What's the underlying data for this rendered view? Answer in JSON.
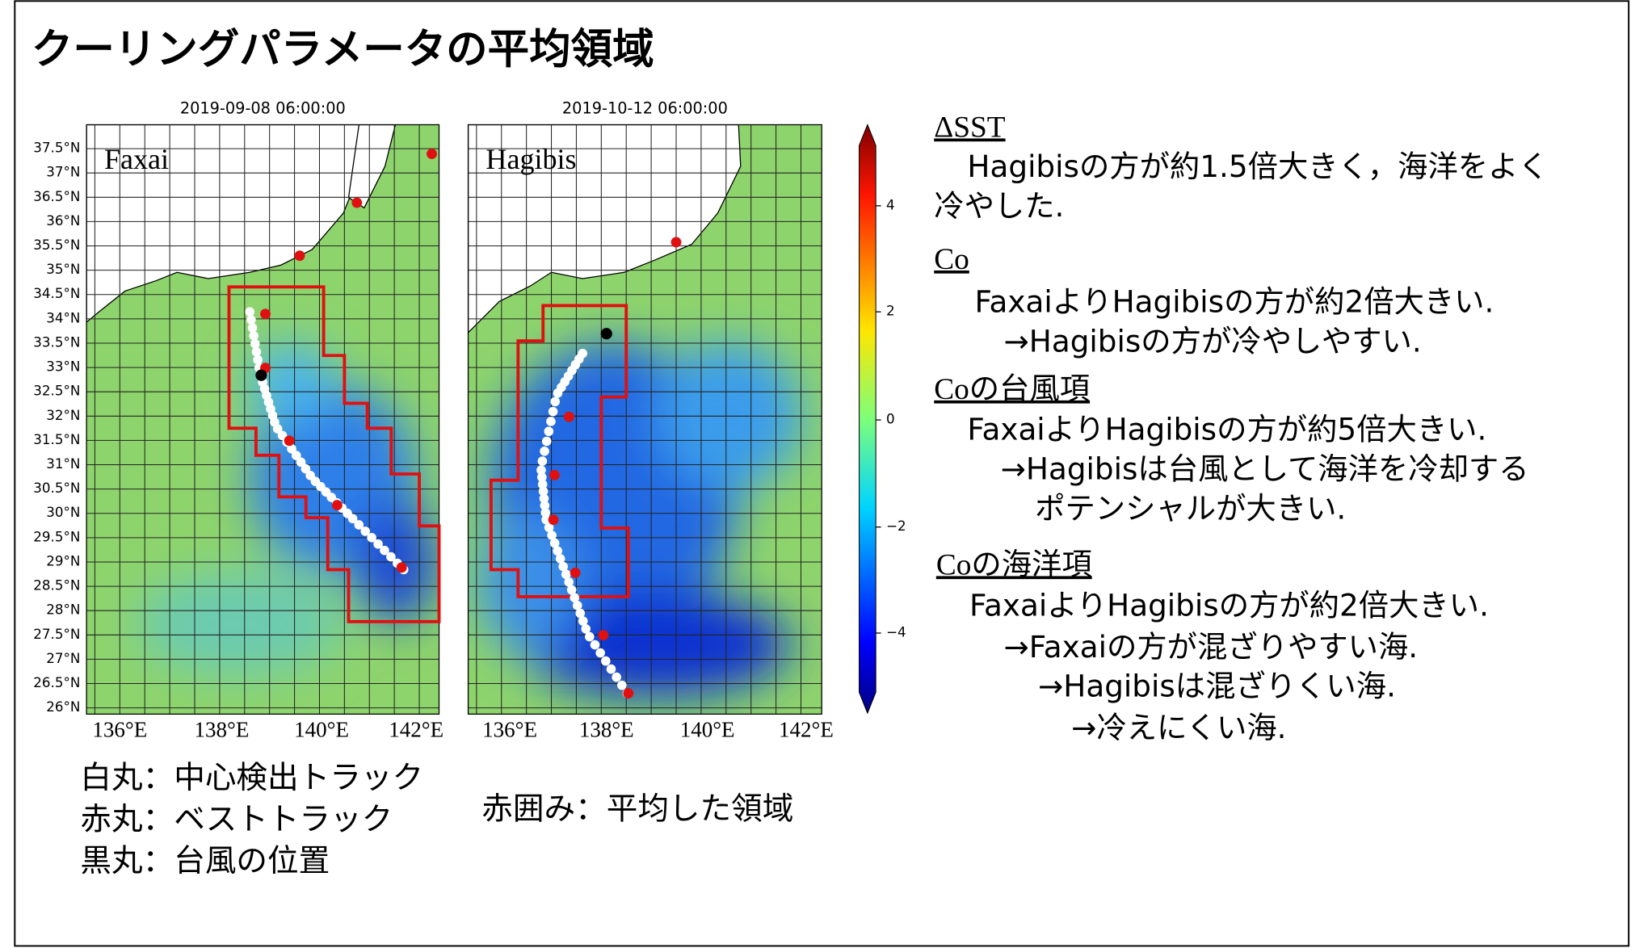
{
  "title": "クーリングパラメータの平均領域",
  "maps": [
    {
      "date": "2019-09-08 06:00:00",
      "label": "Faxai",
      "lon_ticks": [
        "136°E",
        "138°E",
        "140°E",
        "142°E"
      ]
    },
    {
      "date": "2019-10-12 06:00:00",
      "label": "Hagibis",
      "lon_ticks": [
        "136°E",
        "138°E",
        "140°E",
        "142°E"
      ]
    }
  ],
  "lat_ticks": [
    "37.5°N",
    "37°N",
    "36.5°N",
    "36°N",
    "35.5°N",
    "35°N",
    "34.5°N",
    "34°N",
    "33.5°N",
    "33°N",
    "32.5°N",
    "32°N",
    "31.5°N",
    "31°N",
    "30.5°N",
    "30°N",
    "29.5°N",
    "29°N",
    "28.5°N",
    "28°N",
    "27.5°N",
    "27°N",
    "26.5°N",
    "26°N"
  ],
  "colorbar_ticks": [
    "4",
    "2",
    "0",
    "−2",
    "−4"
  ],
  "legend": [
    "白丸：中心検出トラック",
    "赤丸：ベストトラック",
    "黒丸：台風の位置"
  ],
  "legend_box": "赤囲み：平均した領域",
  "notes": [
    {
      "heading": "ΔSST",
      "lines": [
        "Hagibisの方が約1.5倍大きく，海洋をよく",
        "冷やした."
      ]
    },
    {
      "heading": "Co",
      "lines": [
        "FaxaiよりHagibisの方が約2倍大きい.",
        "→Hagibisの方が冷やしやすい."
      ]
    },
    {
      "heading": "Coの台風項",
      "lines": [
        "FaxaiよりHagibisの方が約5倍大きい.",
        "→Hagibisは台風として海洋を冷却する",
        "ポテンシャルが大きい."
      ]
    },
    {
      "heading": "Coの海洋項",
      "lines": [
        "FaxaiよりHagibisの方が約2倍大きい.",
        "→Faxaiの方が混ざりやすい海.",
        "→Hagibisは混ざりくい海.",
        "→冷えにくい海."
      ]
    }
  ]
}
